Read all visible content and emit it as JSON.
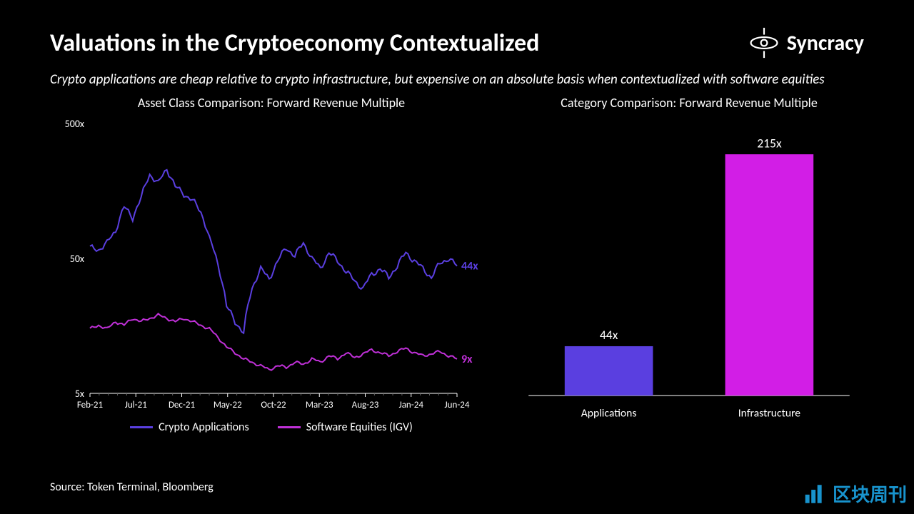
{
  "title": "Valuations in the Cryptoeconomy Contextualized",
  "brand": "Syncracy",
  "subtitle": "Crypto applications are cheap relative to crypto infrastructure, but expensive on an absolute basis when contextualized with software equities",
  "source": "Source: Token Terminal, Bloomberg",
  "watermark": "区块周刊",
  "colors": {
    "background": "#000000",
    "text": "#ffffff",
    "series_crypto": "#5a3fe0",
    "series_software": "#c030d8",
    "bar_applications": "#5a3fe0",
    "bar_infrastructure": "#d21ee6",
    "axis": "#ffffff",
    "grid": "#666666",
    "watermark": "#1a9bd8"
  },
  "line_chart": {
    "title": "Asset Class Comparison: Forward Revenue Multiple",
    "type": "line",
    "yscale": "log",
    "ylim": [
      5,
      500
    ],
    "yticks": [
      5,
      50,
      500
    ],
    "ytick_labels": [
      "5x",
      "50x",
      "500x"
    ],
    "x_labels": [
      "Feb-21",
      "Jul-21",
      "Dec-21",
      "May-22",
      "Oct-22",
      "Mar-23",
      "Aug-23",
      "Jan-24",
      "Jun-24"
    ],
    "end_labels": {
      "crypto": "44x",
      "software": "9x"
    },
    "end_label_color_crypto": "#5a3fe0",
    "end_label_color_software": "#c030d8",
    "series": [
      {
        "name": "Crypto Applications",
        "color": "#5a3fe0",
        "line_width": 2,
        "values": [
          60,
          58,
          65,
          80,
          120,
          100,
          140,
          210,
          180,
          230,
          170,
          150,
          135,
          110,
          70,
          45,
          22,
          17,
          14,
          30,
          42,
          35,
          48,
          60,
          52,
          65,
          50,
          42,
          55,
          48,
          40,
          34,
          30,
          38,
          42,
          36,
          44,
          55,
          48,
          42,
          36,
          46,
          50,
          44
        ]
      },
      {
        "name": "Software Equities (IGV)",
        "color": "#c030d8",
        "line_width": 2,
        "values": [
          15,
          16,
          15,
          17,
          16,
          18,
          17,
          18,
          19,
          18,
          17,
          18,
          17,
          16,
          15,
          13,
          11,
          10,
          9,
          8.5,
          8,
          7.5,
          8,
          7.8,
          8.5,
          8.2,
          9,
          8.5,
          9.5,
          9,
          10,
          9.2,
          9.8,
          10.5,
          10,
          9.5,
          10.2,
          10.8,
          10,
          9.5,
          9.8,
          10.2,
          9.5,
          9
        ]
      }
    ],
    "legend": [
      "Crypto Applications",
      "Software Equities (IGV)"
    ],
    "title_fontsize": 18,
    "label_fontsize": 14
  },
  "bar_chart": {
    "title": "Category Comparison: Forward Revenue Multiple",
    "type": "bar",
    "categories": [
      "Applications",
      "Infrastructure"
    ],
    "values": [
      44,
      215
    ],
    "value_labels": [
      "44x",
      "215x"
    ],
    "bar_colors": [
      "#5a3fe0",
      "#d21ee6"
    ],
    "ylim": [
      0,
      230
    ],
    "bar_width": 0.55,
    "title_fontsize": 18,
    "label_fontsize": 16
  }
}
